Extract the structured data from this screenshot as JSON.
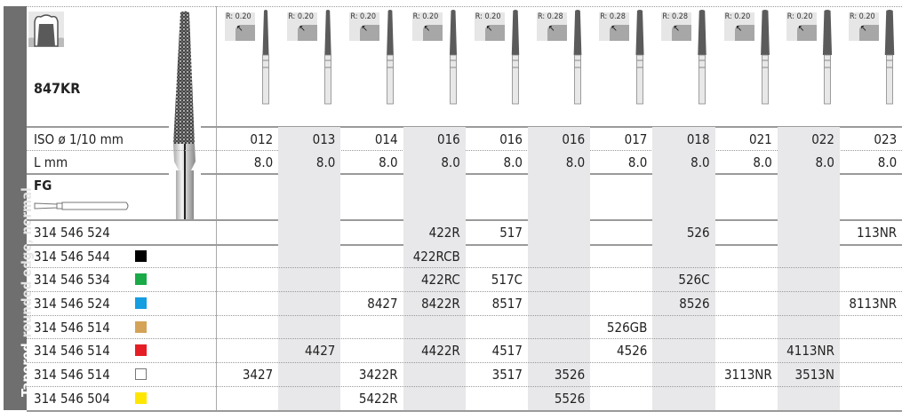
{
  "side_label": {
    "bold": "Tapered",
    "rest": "rounded edge, normal"
  },
  "product": {
    "model": "847KR",
    "shank_type": "FG",
    "icon": "tooth-crown-preparation-icon"
  },
  "row_labels": {
    "iso": "ISO ø 1/10 mm",
    "length": "L mm"
  },
  "columns": [
    {
      "radius": "R: 0.20",
      "iso": "012",
      "length": "8.0",
      "shaded": false
    },
    {
      "radius": "R: 0.20",
      "iso": "013",
      "length": "8.0",
      "shaded": true
    },
    {
      "radius": "R: 0.20",
      "iso": "014",
      "length": "8.0",
      "shaded": false
    },
    {
      "radius": "R: 0.20",
      "iso": "016",
      "length": "8.0",
      "shaded": true
    },
    {
      "radius": "R: 0.20",
      "iso": "016",
      "length": "8.0",
      "shaded": false
    },
    {
      "radius": "R: 0.28",
      "iso": "016",
      "length": "8.0",
      "shaded": true
    },
    {
      "radius": "R: 0.28",
      "iso": "017",
      "length": "8.0",
      "shaded": false
    },
    {
      "radius": "R: 0.28",
      "iso": "018",
      "length": "8.0",
      "shaded": true
    },
    {
      "radius": "R: 0.20",
      "iso": "021",
      "length": "8.0",
      "shaded": false
    },
    {
      "radius": "R: 0.20",
      "iso": "022",
      "length": "8.0",
      "shaded": true
    },
    {
      "radius": "R: 0.20",
      "iso": "023",
      "length": "8.0",
      "shaded": false
    }
  ],
  "rows": [
    {
      "code": "314 546 524",
      "color": null,
      "cells": [
        "",
        "",
        "",
        "422R",
        "517",
        "",
        "",
        "526",
        "",
        "",
        "113NR"
      ]
    },
    {
      "code": "314 546 544",
      "color": "#000000",
      "cells": [
        "",
        "",
        "",
        "422RCB",
        "",
        "",
        "",
        "",
        "",
        "",
        ""
      ]
    },
    {
      "code": "314 546 534",
      "color": "#1aaa48",
      "cells": [
        "",
        "",
        "",
        "422RC",
        "517C",
        "",
        "",
        "526C",
        "",
        "",
        ""
      ]
    },
    {
      "code": "314 546 524",
      "color": "#159ee0",
      "cells": [
        "",
        "",
        "8427",
        "8422R",
        "8517",
        "",
        "",
        "8526",
        "",
        "",
        "8113NR"
      ]
    },
    {
      "code": "314 546 514",
      "color": "#d4a357",
      "cells": [
        "",
        "",
        "",
        "",
        "",
        "",
        "526GB",
        "",
        "",
        "",
        ""
      ]
    },
    {
      "code": "314 546 514",
      "color": "#e51e25",
      "cells": [
        "",
        "4427",
        "",
        "4422R",
        "4517",
        "",
        "4526",
        "",
        "",
        "4113NR",
        ""
      ]
    },
    {
      "code": "314 546 514",
      "color": "#ffffff",
      "cells": [
        "3427",
        "",
        "3422R",
        "",
        "3517",
        "3526",
        "",
        "",
        "3113NR",
        "3513N",
        ""
      ]
    },
    {
      "code": "314 546 504",
      "color": "#ffe600",
      "cells": [
        "",
        "",
        "5422R",
        "",
        "",
        "5526",
        "",
        "",
        "",
        "",
        ""
      ]
    }
  ]
}
